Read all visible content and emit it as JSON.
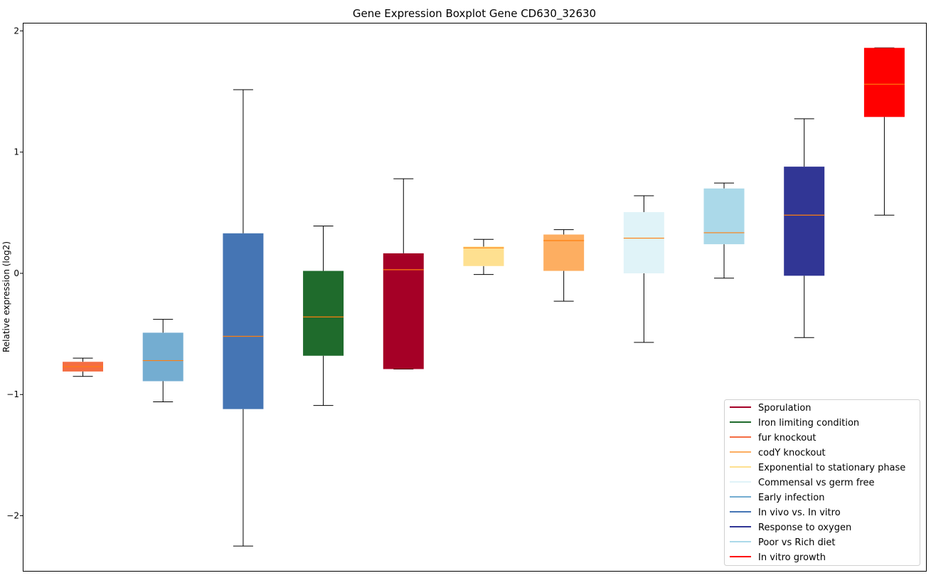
{
  "chart_data": {
    "type": "boxplot",
    "title": "Gene Expression Boxplot Gene CD630_32630",
    "xlabel": "",
    "ylabel": "Relative expression (log2)",
    "ylim": [
      -2.455,
      2.067
    ],
    "xlim": [
      0.25,
      11.52
    ],
    "yticks": [
      -2,
      -1,
      0,
      1,
      2
    ],
    "ytick_labels": [
      "−2",
      "−1",
      "0",
      "1",
      "2"
    ],
    "grid": false,
    "legend_position": "bottom-right",
    "median_color": "#ff7f0e",
    "series": [
      {
        "name": "fur knockout",
        "color": "#f46d43",
        "whislo": -0.85,
        "q1": -0.81,
        "med": -0.77,
        "q3": -0.73,
        "whishi": -0.7
      },
      {
        "name": "Early infection",
        "color": "#74add1",
        "whislo": -1.06,
        "q1": -0.89,
        "med": -0.72,
        "q3": -0.49,
        "whishi": -0.38
      },
      {
        "name": "In vivo vs. In vitro",
        "color": "#4575b4",
        "whislo": -2.25,
        "q1": -1.12,
        "med": -0.52,
        "q3": 0.33,
        "whishi": 1.515
      },
      {
        "name": "Iron limiting condition",
        "color": "#1f6b2c",
        "whislo": -1.09,
        "q1": -0.68,
        "med": -0.36,
        "q3": 0.02,
        "whishi": 0.39
      },
      {
        "name": "Sporulation",
        "color": "#a50026",
        "whislo": -0.79,
        "q1": -0.79,
        "med": 0.03,
        "q3": 0.165,
        "whishi": 0.78
      },
      {
        "name": "Exponential to stationary phase",
        "color": "#fee090",
        "whislo": -0.01,
        "q1": 0.06,
        "med": 0.21,
        "q3": 0.22,
        "whishi": 0.28
      },
      {
        "name": "codY knockout",
        "color": "#fdae61",
        "whislo": -0.23,
        "q1": 0.02,
        "med": 0.27,
        "q3": 0.32,
        "whishi": 0.36
      },
      {
        "name": "Commensal vs germ free",
        "color": "#e0f3f8",
        "whislo": -0.57,
        "q1": 0.0,
        "med": 0.29,
        "q3": 0.505,
        "whishi": 0.64
      },
      {
        "name": "Poor vs Rich diet",
        "color": "#abd9e9",
        "whislo": -0.04,
        "q1": 0.24,
        "med": 0.335,
        "q3": 0.7,
        "whishi": 0.745
      },
      {
        "name": "Response to oxygen",
        "color": "#313695",
        "whislo": -0.53,
        "q1": -0.02,
        "med": 0.48,
        "q3": 0.88,
        "whishi": 1.275
      },
      {
        "name": "In vitro growth",
        "color": "#ff0000",
        "whislo": 0.48,
        "q1": 1.29,
        "med": 1.56,
        "q3": 1.86,
        "whishi": 1.86
      }
    ],
    "legend": [
      {
        "label": "Sporulation",
        "color": "#a50026"
      },
      {
        "label": "Iron limiting condition",
        "color": "#1f6b2c"
      },
      {
        "label": "fur knockout",
        "color": "#f46d43"
      },
      {
        "label": "codY knockout",
        "color": "#fdae61"
      },
      {
        "label": "Exponential to stationary phase",
        "color": "#fee090"
      },
      {
        "label": "Commensal vs germ free",
        "color": "#e0f3f8"
      },
      {
        "label": "Early infection",
        "color": "#74add1"
      },
      {
        "label": "In vivo vs. In vitro",
        "color": "#4575b4"
      },
      {
        "label": "Response to oxygen",
        "color": "#313695"
      },
      {
        "label": "Poor vs Rich diet",
        "color": "#abd9e9"
      },
      {
        "label": "In vitro growth",
        "color": "#ff0000"
      }
    ]
  }
}
